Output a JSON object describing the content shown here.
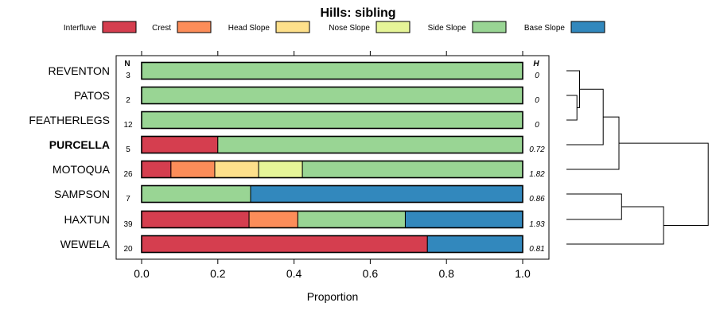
{
  "chart_data": {
    "type": "bar",
    "stacked": true,
    "orientation": "horizontal",
    "title": "Hills: sibling",
    "xlabel": "Proportion",
    "xlim": [
      0,
      1
    ],
    "xticks": [
      "0.0",
      "0.2",
      "0.4",
      "0.6",
      "0.8",
      "1.0"
    ],
    "xtick_values": [
      0,
      0.2,
      0.4,
      0.6,
      0.8,
      1.0
    ],
    "n_header": "N",
    "h_header": "H",
    "legend_position": "top",
    "legend": [
      {
        "name": "Interfluve",
        "color": "#d53e4f"
      },
      {
        "name": "Crest",
        "color": "#fc8d59"
      },
      {
        "name": "Head Slope",
        "color": "#fee08b"
      },
      {
        "name": "Nose Slope",
        "color": "#e6f598"
      },
      {
        "name": "Side Slope",
        "color": "#99d594"
      },
      {
        "name": "Base Slope",
        "color": "#3288bd"
      }
    ],
    "rows": [
      {
        "name": "REVENTON",
        "bold": false,
        "n": "3",
        "h": "0",
        "values": [
          0,
          0,
          0,
          0,
          1.0,
          0
        ]
      },
      {
        "name": "PATOS",
        "bold": false,
        "n": "2",
        "h": "0",
        "values": [
          0,
          0,
          0,
          0,
          1.0,
          0
        ]
      },
      {
        "name": "FEATHERLEGS",
        "bold": false,
        "n": "12",
        "h": "0",
        "values": [
          0,
          0,
          0,
          0,
          1.0,
          0
        ]
      },
      {
        "name": "PURCELLA",
        "bold": true,
        "n": "5",
        "h": "0.72",
        "values": [
          0.2,
          0,
          0,
          0,
          0.8,
          0
        ]
      },
      {
        "name": "MOTOQUA",
        "bold": false,
        "n": "26",
        "h": "1.82",
        "values": [
          0.077,
          0.115,
          0.115,
          0.115,
          0.578,
          0
        ]
      },
      {
        "name": "SAMPSON",
        "bold": false,
        "n": "7",
        "h": "0.86",
        "values": [
          0,
          0,
          0,
          0,
          0.286,
          0.714
        ]
      },
      {
        "name": "HAXTUN",
        "bold": false,
        "n": "39",
        "h": "1.93",
        "values": [
          0.282,
          0.128,
          0,
          0,
          0.282,
          0.308
        ]
      },
      {
        "name": "WEWELA",
        "bold": false,
        "n": "20",
        "h": "0.81",
        "values": [
          0.75,
          0,
          0,
          0,
          0,
          0.25
        ]
      }
    ],
    "dendrogram": {
      "description": "hierarchical clustering of rows",
      "merges": [
        {
          "a": "PATOS",
          "b": "FEATHERLEGS",
          "height": 0.04
        },
        {
          "a": "REVENTON",
          "b": "PATOS+FEATHERLEGS",
          "height": 0.05
        },
        {
          "a": "PURCELLA",
          "b": "REVENTON+PATOS+FEATHERLEGS",
          "height": 0.14
        },
        {
          "a": "MOTOQUA",
          "b": "PURCELLA+REVENTON+PATOS+FEATHERLEGS",
          "height": 0.2
        },
        {
          "a": "SAMPSON",
          "b": "HAXTUN",
          "height": 0.21
        },
        {
          "a": "WEWELA",
          "b": "SAMPSON+HAXTUN",
          "height": 0.37
        },
        {
          "a": "upper-cluster",
          "b": "lower-cluster",
          "height": 0.54
        }
      ]
    }
  }
}
